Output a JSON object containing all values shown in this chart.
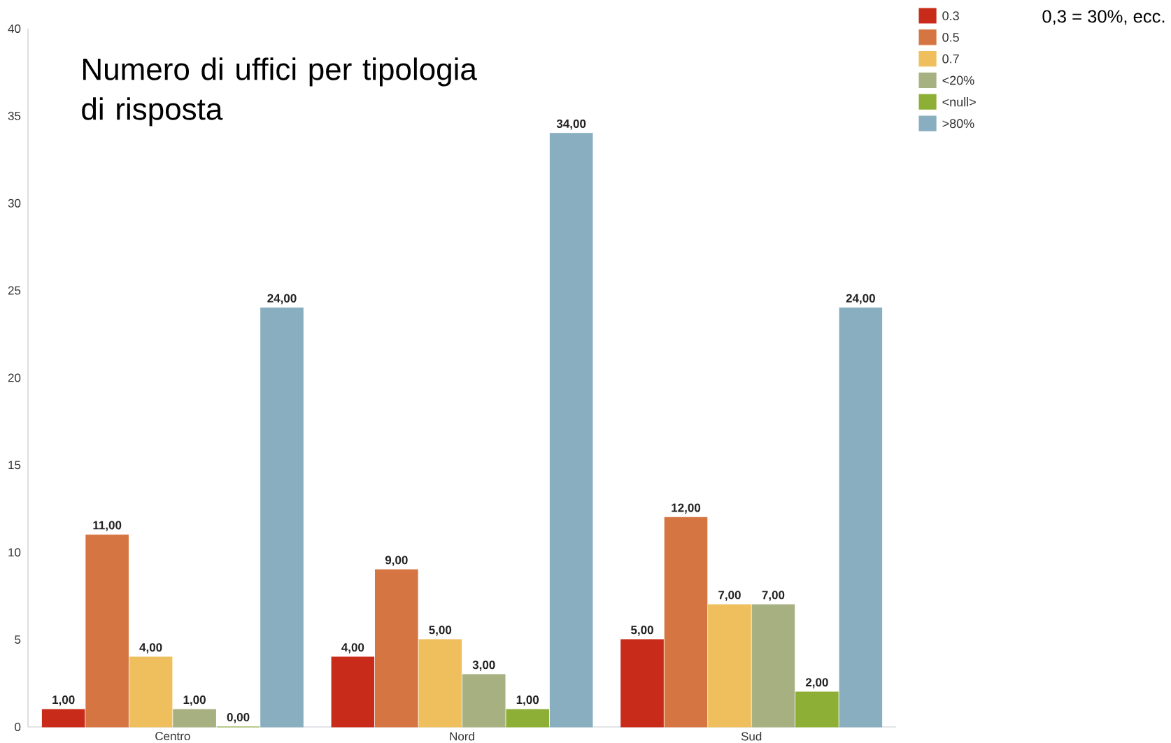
{
  "chart_data": {
    "type": "bar",
    "title": "Numero di uffici per tipologia di risposta",
    "categories": [
      "Centro",
      "Nord",
      "Sud"
    ],
    "series": [
      {
        "name": "0.3",
        "color": "#c92b1b",
        "values": [
          1,
          4,
          5
        ],
        "value_labels": [
          "1,00",
          "4,00",
          "5,00"
        ]
      },
      {
        "name": "0.5",
        "color": "#d57541",
        "values": [
          11,
          9,
          12
        ],
        "value_labels": [
          "11,00",
          "9,00",
          "12,00"
        ]
      },
      {
        "name": "0.7",
        "color": "#eebf5c",
        "values": [
          4,
          5,
          7
        ],
        "value_labels": [
          "4,00",
          "5,00",
          "7,00"
        ]
      },
      {
        "name": "<20%",
        "color": "#a7b080",
        "values": [
          1,
          3,
          7
        ],
        "value_labels": [
          "1,00",
          "3,00",
          "7,00"
        ]
      },
      {
        "name": "<null>",
        "color": "#8daf35",
        "values": [
          0,
          1,
          2
        ],
        "value_labels": [
          "0,00",
          "1,00",
          "2,00"
        ]
      },
      {
        "name": ">80%",
        "color": "#88aec0",
        "values": [
          24,
          34,
          24
        ],
        "value_labels": [
          "24,00",
          "34,00",
          "24,00"
        ]
      }
    ],
    "ylim": [
      0,
      40
    ],
    "yticks": [
      0,
      5,
      10,
      15,
      20,
      25,
      30,
      35,
      40
    ],
    "legend": "top right",
    "annotations": [
      "0,3 = 30%, ecc."
    ]
  }
}
